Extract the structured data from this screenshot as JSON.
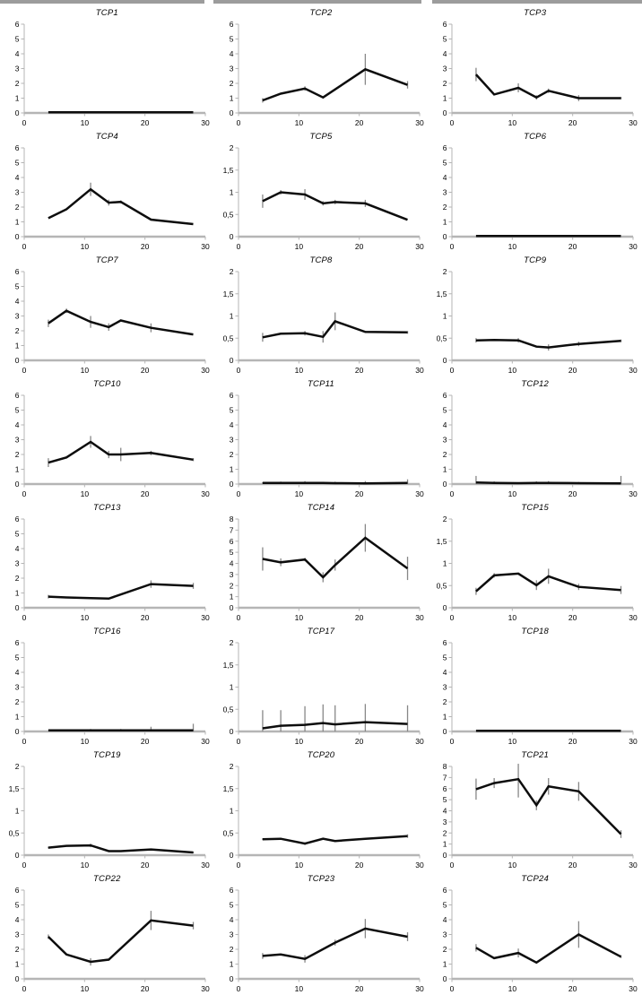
{
  "figure": {
    "background_color": "#ffffff",
    "separator_bar_color": "#9c9c9c",
    "axis_color": "#b5b5b5",
    "line_color": "#0d0d0d",
    "error_bar_color": "#878787",
    "decimal_separator": ",",
    "xlabel": "",
    "ylabel": ""
  },
  "chart_data": [
    {
      "type": "line",
      "title": "TCP1",
      "xlim": [
        0,
        30
      ],
      "xticks": [
        0,
        10,
        20,
        30
      ],
      "ylim": [
        0,
        6
      ],
      "ytick_labels": [
        "0",
        "1",
        "2",
        "3",
        "4",
        "5",
        "6"
      ],
      "x": [
        4,
        7,
        11,
        14,
        16,
        21,
        28
      ],
      "y": [
        0.05,
        0.05,
        0.05,
        0.05,
        0.05,
        0.05,
        0.05
      ],
      "err": [
        0,
        0,
        0,
        0,
        0,
        0,
        0
      ]
    },
    {
      "type": "line",
      "title": "TCP2",
      "xlim": [
        0,
        30
      ],
      "xticks": [
        0,
        10,
        20,
        30
      ],
      "ylim": [
        0,
        6
      ],
      "ytick_labels": [
        "0",
        "1",
        "2",
        "3",
        "4",
        "5",
        "6"
      ],
      "x": [
        4,
        7,
        11,
        14,
        21,
        28
      ],
      "y": [
        0.85,
        1.3,
        1.65,
        1.05,
        2.95,
        1.9
      ],
      "err": [
        0.15,
        0,
        0.15,
        0,
        1.05,
        0.25
      ]
    },
    {
      "type": "line",
      "title": "TCP3",
      "xlim": [
        0,
        30
      ],
      "xticks": [
        0,
        10,
        20,
        30
      ],
      "ylim": [
        0,
        6
      ],
      "ytick_labels": [
        "0",
        "1",
        "2",
        "3",
        "4",
        "5",
        "6"
      ],
      "x": [
        4,
        7,
        11,
        14,
        16,
        21,
        28
      ],
      "y": [
        2.6,
        1.25,
        1.7,
        1.05,
        1.5,
        1.0,
        1.0
      ],
      "err": [
        0.45,
        0,
        0.3,
        0.15,
        0.15,
        0.2,
        0.08
      ]
    },
    {
      "type": "line",
      "title": "TCP4",
      "xlim": [
        0,
        30
      ],
      "xticks": [
        0,
        10,
        20,
        30
      ],
      "ylim": [
        0,
        6
      ],
      "ytick_labels": [
        "0",
        "1",
        "2",
        "3",
        "4",
        "5",
        "6"
      ],
      "x": [
        4,
        7,
        11,
        14,
        16,
        21,
        28
      ],
      "y": [
        1.25,
        1.85,
        3.2,
        2.3,
        2.35,
        1.15,
        0.85
      ],
      "err": [
        0,
        0,
        0.45,
        0.2,
        0.1,
        0,
        0
      ]
    },
    {
      "type": "line",
      "title": "TCP5",
      "xlim": [
        0,
        30
      ],
      "xticks": [
        0,
        10,
        20,
        30
      ],
      "ylim": [
        0,
        2
      ],
      "ytick_labels": [
        "0",
        "0,5",
        "1",
        "1,5",
        "2"
      ],
      "x": [
        4,
        7,
        11,
        14,
        16,
        21,
        28
      ],
      "y": [
        0.8,
        1.0,
        0.95,
        0.75,
        0.78,
        0.75,
        0.38
      ],
      "err": [
        0.15,
        0.05,
        0.12,
        0.05,
        0.05,
        0.08,
        0
      ]
    },
    {
      "type": "line",
      "title": "TCP6",
      "xlim": [
        0,
        30
      ],
      "xticks": [
        0,
        10,
        20,
        30
      ],
      "ylim": [
        0,
        6
      ],
      "ytick_labels": [
        "0",
        "1",
        "2",
        "3",
        "4",
        "5",
        "6"
      ],
      "x": [
        4,
        7,
        11,
        14,
        16,
        21,
        28
      ],
      "y": [
        0.05,
        0.05,
        0.05,
        0.05,
        0.05,
        0.05,
        0.05
      ],
      "err": [
        0,
        0,
        0,
        0,
        0,
        0,
        0
      ]
    },
    {
      "type": "line",
      "title": "TCP7",
      "xlim": [
        0,
        30
      ],
      "xticks": [
        0,
        10,
        20,
        30
      ],
      "ylim": [
        0,
        6
      ],
      "ytick_labels": [
        "0",
        "1",
        "2",
        "3",
        "4",
        "5",
        "6"
      ],
      "x": [
        4,
        7,
        11,
        14,
        16,
        21,
        28
      ],
      "y": [
        2.5,
        3.35,
        2.6,
        2.25,
        2.7,
        2.2,
        1.75
      ],
      "err": [
        0.25,
        0.15,
        0.4,
        0.25,
        0,
        0.3,
        0
      ]
    },
    {
      "type": "line",
      "title": "TCP8",
      "xlim": [
        0,
        30
      ],
      "xticks": [
        0,
        10,
        20,
        30
      ],
      "ylim": [
        0,
        2
      ],
      "ytick_labels": [
        "0",
        "0,5",
        "1",
        "1,5",
        "2"
      ],
      "x": [
        4,
        7,
        11,
        14,
        16,
        21,
        28
      ],
      "y": [
        0.52,
        0.6,
        0.61,
        0.53,
        0.88,
        0.64,
        0.63
      ],
      "err": [
        0.1,
        0,
        0.05,
        0.13,
        0.2,
        0,
        0.03
      ]
    },
    {
      "type": "line",
      "title": "TCP9",
      "xlim": [
        0,
        30
      ],
      "xticks": [
        0,
        10,
        20,
        30
      ],
      "ylim": [
        0,
        2
      ],
      "ytick_labels": [
        "0",
        "0,5",
        "1",
        "1,5",
        "2"
      ],
      "x": [
        4,
        7,
        11,
        14,
        16,
        21,
        28
      ],
      "y": [
        0.45,
        0.46,
        0.45,
        0.31,
        0.29,
        0.37,
        0.44
      ],
      "err": [
        0.05,
        0,
        0.05,
        0,
        0.07,
        0.05,
        0.03
      ]
    },
    {
      "type": "line",
      "title": "TCP10",
      "xlim": [
        0,
        30
      ],
      "xticks": [
        0,
        10,
        20,
        30
      ],
      "ylim": [
        0,
        6
      ],
      "ytick_labels": [
        "0",
        "1",
        "2",
        "3",
        "4",
        "5",
        "6"
      ],
      "x": [
        4,
        7,
        11,
        14,
        16,
        21,
        28
      ],
      "y": [
        1.45,
        1.8,
        2.85,
        2.0,
        2.0,
        2.1,
        1.65
      ],
      "err": [
        0.3,
        0,
        0.4,
        0.25,
        0.45,
        0.15,
        0.1
      ]
    },
    {
      "type": "line",
      "title": "TCP11",
      "xlim": [
        0,
        30
      ],
      "xticks": [
        0,
        10,
        20,
        30
      ],
      "ylim": [
        0,
        6
      ],
      "ytick_labels": [
        "0",
        "1",
        "2",
        "3",
        "4",
        "5",
        "6"
      ],
      "x": [
        4,
        7,
        11,
        14,
        16,
        21,
        28
      ],
      "y": [
        0.07,
        0.07,
        0.08,
        0.07,
        0.06,
        0.05,
        0.07
      ],
      "err": [
        0.05,
        0.1,
        0.12,
        0.08,
        0.1,
        0.15,
        0.25
      ]
    },
    {
      "type": "line",
      "title": "TCP12",
      "xlim": [
        0,
        30
      ],
      "xticks": [
        0,
        10,
        20,
        30
      ],
      "ylim": [
        0,
        6
      ],
      "ytick_labels": [
        "0",
        "1",
        "2",
        "3",
        "4",
        "5",
        "6"
      ],
      "x": [
        4,
        7,
        11,
        14,
        16,
        21,
        28
      ],
      "y": [
        0.1,
        0.08,
        0.06,
        0.08,
        0.08,
        0.06,
        0.05
      ],
      "err": [
        0.45,
        0.1,
        0,
        0.1,
        0.12,
        0.08,
        0.5
      ]
    },
    {
      "type": "line",
      "title": "TCP13",
      "xlim": [
        0,
        30
      ],
      "xticks": [
        0,
        10,
        20,
        30
      ],
      "ylim": [
        0,
        6
      ],
      "ytick_labels": [
        "0",
        "1",
        "2",
        "3",
        "4",
        "5",
        "6"
      ],
      "x": [
        4,
        7,
        11,
        14,
        21,
        28
      ],
      "y": [
        0.75,
        0.7,
        0.65,
        0.62,
        1.6,
        1.48
      ],
      "err": [
        0.12,
        0,
        0,
        0,
        0.25,
        0.2
      ]
    },
    {
      "type": "line",
      "title": "TCP14",
      "xlim": [
        0,
        30
      ],
      "xticks": [
        0,
        10,
        20,
        30
      ],
      "ylim": [
        0,
        8
      ],
      "ytick_labels": [
        "0",
        "1",
        "2",
        "3",
        "4",
        "5",
        "6",
        "7",
        "8"
      ],
      "x": [
        4,
        7,
        11,
        14,
        16,
        21,
        28
      ],
      "y": [
        4.4,
        4.1,
        4.35,
        2.75,
        3.85,
        6.3,
        3.55
      ],
      "err": [
        1.05,
        0.35,
        0.15,
        0.45,
        0.5,
        1.25,
        1.05
      ]
    },
    {
      "type": "line",
      "title": "TCP15",
      "xlim": [
        0,
        30
      ],
      "xticks": [
        0,
        10,
        20,
        30
      ],
      "ylim": [
        0,
        2
      ],
      "ytick_labels": [
        "0",
        "0,5",
        "1",
        "1,5",
        "2"
      ],
      "x": [
        4,
        7,
        11,
        14,
        16,
        21,
        28
      ],
      "y": [
        0.37,
        0.73,
        0.77,
        0.51,
        0.71,
        0.47,
        0.4
      ],
      "err": [
        0.08,
        0.05,
        0,
        0.11,
        0.17,
        0.07,
        0.09
      ]
    },
    {
      "type": "line",
      "title": "TCP16",
      "xlim": [
        0,
        30
      ],
      "xticks": [
        0,
        10,
        20,
        30
      ],
      "ylim": [
        0,
        6
      ],
      "ytick_labels": [
        "0",
        "1",
        "2",
        "3",
        "4",
        "5",
        "6"
      ],
      "x": [
        4,
        7,
        11,
        14,
        16,
        21,
        28
      ],
      "y": [
        0.07,
        0.07,
        0.07,
        0.07,
        0.07,
        0.07,
        0.07
      ],
      "err": [
        0,
        0,
        0.1,
        0.08,
        0.1,
        0.25,
        0.45
      ]
    },
    {
      "type": "line",
      "title": "TCP17",
      "xlim": [
        0,
        30
      ],
      "xticks": [
        0,
        10,
        20,
        30
      ],
      "ylim": [
        0,
        2
      ],
      "ytick_labels": [
        "0",
        "0,5",
        "1",
        "1,5",
        "2"
      ],
      "x": [
        4,
        7,
        11,
        14,
        16,
        21,
        28
      ],
      "y": [
        0.07,
        0.13,
        0.15,
        0.19,
        0.16,
        0.21,
        0.17
      ],
      "err": [
        0.41,
        0.35,
        0.42,
        0.42,
        0.43,
        0.41,
        0.42
      ]
    },
    {
      "type": "line",
      "title": "TCP18",
      "xlim": [
        0,
        30
      ],
      "xticks": [
        0,
        10,
        20,
        30
      ],
      "ylim": [
        0,
        6
      ],
      "ytick_labels": [
        "0",
        "1",
        "2",
        "3",
        "4",
        "5",
        "6"
      ],
      "x": [
        4,
        7,
        11,
        14,
        16,
        21,
        28
      ],
      "y": [
        0.05,
        0.05,
        0.05,
        0.05,
        0.05,
        0.05,
        0.05
      ],
      "err": [
        0,
        0,
        0,
        0,
        0,
        0,
        0
      ]
    },
    {
      "type": "line",
      "title": "TCP19",
      "xlim": [
        0,
        30
      ],
      "xticks": [
        0,
        10,
        20,
        30
      ],
      "ylim": [
        0,
        2
      ],
      "ytick_labels": [
        "0",
        "0,5",
        "1",
        "1,5",
        "2"
      ],
      "x": [
        4,
        7,
        11,
        14,
        16,
        21,
        28
      ],
      "y": [
        0.17,
        0.21,
        0.22,
        0.09,
        0.09,
        0.13,
        0.06
      ],
      "err": [
        0.02,
        0,
        0.04,
        0,
        0,
        0.02,
        0.02
      ]
    },
    {
      "type": "line",
      "title": "TCP20",
      "xlim": [
        0,
        30
      ],
      "xticks": [
        0,
        10,
        20,
        30
      ],
      "ylim": [
        0,
        2
      ],
      "ytick_labels": [
        "0",
        "0,5",
        "1",
        "1,5",
        "2"
      ],
      "x": [
        4,
        7,
        11,
        14,
        16,
        21,
        28
      ],
      "y": [
        0.36,
        0.37,
        0.26,
        0.37,
        0.32,
        0.37,
        0.43
      ],
      "err": [
        0.02,
        0,
        0.03,
        0.02,
        0,
        0,
        0.04
      ]
    },
    {
      "type": "line",
      "title": "TCP21",
      "xlim": [
        0,
        30
      ],
      "xticks": [
        0,
        10,
        20,
        30
      ],
      "ylim": [
        0,
        8
      ],
      "ytick_labels": [
        "0",
        "1",
        "2",
        "3",
        "4",
        "5",
        "6",
        "7",
        "8"
      ],
      "x": [
        4,
        7,
        11,
        14,
        16,
        21,
        28
      ],
      "y": [
        5.95,
        6.5,
        6.85,
        4.5,
        6.2,
        5.75,
        1.9
      ],
      "err": [
        0.95,
        0.45,
        1.65,
        0.45,
        0.75,
        0.85,
        0.35
      ]
    },
    {
      "type": "line",
      "title": "TCP22",
      "xlim": [
        0,
        30
      ],
      "xticks": [
        0,
        10,
        20,
        30
      ],
      "ylim": [
        0,
        6
      ],
      "ytick_labels": [
        "0",
        "1",
        "2",
        "3",
        "4",
        "5",
        "6"
      ],
      "x": [
        4,
        7,
        11,
        14,
        21,
        28
      ],
      "y": [
        2.85,
        1.65,
        1.15,
        1.3,
        3.95,
        3.6
      ],
      "err": [
        0.15,
        0,
        0.25,
        0,
        0.65,
        0.25
      ]
    },
    {
      "type": "line",
      "title": "TCP23",
      "xlim": [
        0,
        30
      ],
      "xticks": [
        0,
        10,
        20,
        30
      ],
      "ylim": [
        0,
        6
      ],
      "ytick_labels": [
        "0",
        "1",
        "2",
        "3",
        "4",
        "5",
        "6"
      ],
      "x": [
        4,
        7,
        11,
        16,
        21,
        28
      ],
      "y": [
        1.55,
        1.65,
        1.35,
        2.45,
        3.4,
        2.85
      ],
      "err": [
        0.2,
        0,
        0.25,
        0.2,
        0.65,
        0.3
      ]
    },
    {
      "type": "line",
      "title": "TCP24",
      "xlim": [
        0,
        30
      ],
      "xticks": [
        0,
        10,
        20,
        30
      ],
      "ylim": [
        0,
        6
      ],
      "ytick_labels": [
        "0",
        "1",
        "2",
        "3",
        "4",
        "5",
        "6"
      ],
      "x": [
        4,
        7,
        11,
        14,
        21,
        28
      ],
      "y": [
        2.1,
        1.4,
        1.75,
        1.1,
        3.0,
        1.5
      ],
      "err": [
        0.25,
        0,
        0.3,
        0,
        0.9,
        0.1
      ]
    }
  ]
}
